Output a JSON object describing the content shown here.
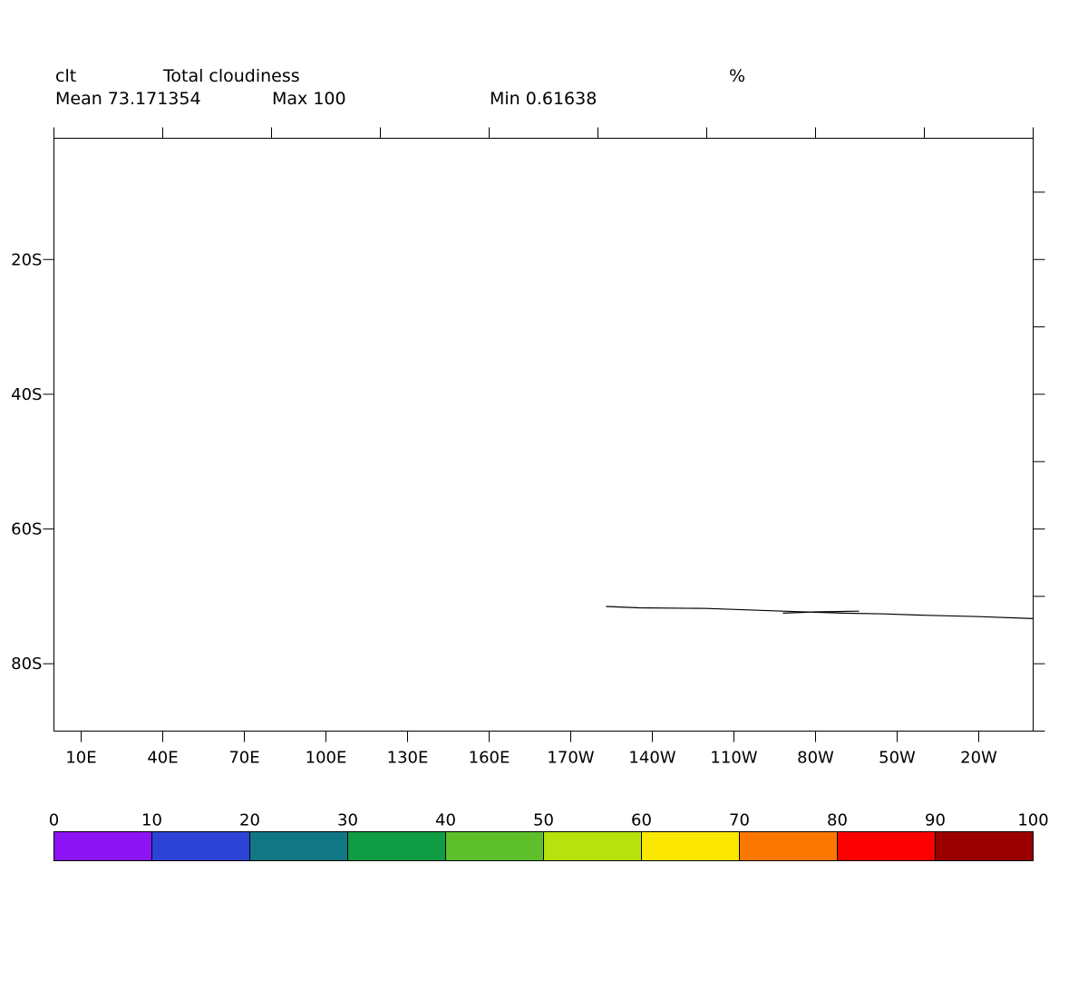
{
  "header": {
    "variable": "clt",
    "long_name": "Total cloudiness",
    "units": "%",
    "mean_label": "Mean 73.171354",
    "max_label": "Max 100",
    "min_label": "Min 0.61638"
  },
  "chart_data": {
    "type": "heatmap",
    "title": "Total cloudiness",
    "variable": "clt",
    "units": "%",
    "stats": {
      "mean": 73.171354,
      "max": 100,
      "min": 0.61638
    },
    "x_ticks": [
      {
        "label": "10E",
        "lon": 10
      },
      {
        "label": "40E",
        "lon": 40
      },
      {
        "label": "70E",
        "lon": 70
      },
      {
        "label": "100E",
        "lon": 100
      },
      {
        "label": "130E",
        "lon": 130
      },
      {
        "label": "160E",
        "lon": 160
      },
      {
        "label": "170W",
        "lon": 190
      },
      {
        "label": "140W",
        "lon": 220
      },
      {
        "label": "110W",
        "lon": 250
      },
      {
        "label": "80W",
        "lon": 280
      },
      {
        "label": "50W",
        "lon": 310
      },
      {
        "label": "20W",
        "lon": 340
      }
    ],
    "y_ticks": [
      {
        "label": "20S",
        "lat": -20
      },
      {
        "label": "40S",
        "lat": -40
      },
      {
        "label": "60S",
        "lat": -60
      },
      {
        "label": "80S",
        "lat": -80
      }
    ],
    "xlim": [
      0,
      360
    ],
    "ylim": [
      -90,
      -2
    ],
    "top_ticks_lon": [
      0,
      40,
      80,
      120,
      160,
      200,
      240,
      280,
      320,
      360
    ],
    "right_ticks_lat": [
      -10,
      -20,
      -30,
      -40,
      -50,
      -60,
      -70,
      -80,
      -90
    ],
    "coastline": [
      [
        [
          203,
          -71.5
        ],
        [
          215,
          -71.7
        ],
        [
          240,
          -71.8
        ],
        [
          268,
          -72.2
        ],
        [
          290,
          -72.5
        ],
        [
          305,
          -72.6
        ],
        [
          320,
          -72.8
        ],
        [
          340,
          -73.0
        ],
        [
          360,
          -73.3
        ]
      ],
      [
        [
          268,
          -72.5
        ],
        [
          280,
          -72.3
        ],
        [
          296,
          -72.2
        ]
      ]
    ],
    "colorbar": {
      "ticks": [
        "0",
        "10",
        "20",
        "30",
        "40",
        "50",
        "60",
        "70",
        "80",
        "90",
        "100"
      ],
      "colors": [
        "#8c14f5",
        "#2c43d6",
        "#117785",
        "#109c44",
        "#5dbf2a",
        "#b8e10e",
        "#fbe600",
        "#fc7700",
        "#fb0000",
        "#9a0000"
      ]
    }
  }
}
